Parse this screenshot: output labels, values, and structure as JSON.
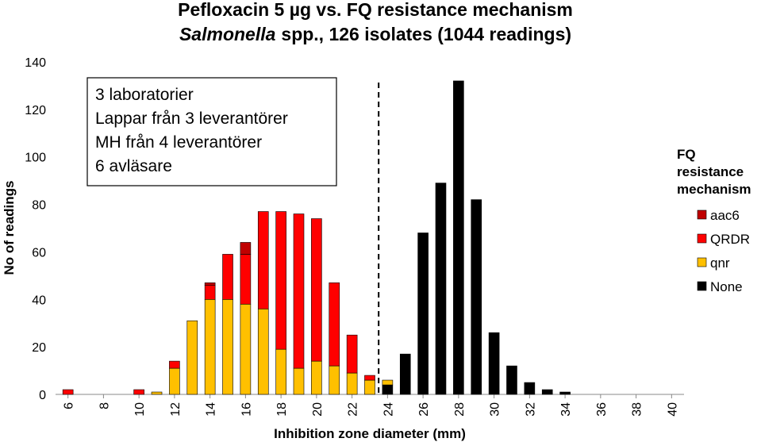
{
  "chart_data": {
    "type": "stacked_bar",
    "title": "Pefloxacin 5 µg vs. FQ resistance mechanism",
    "subtitle_parts": [
      "Salmonella",
      "spp., 126 isolates (1044 readings)"
    ],
    "xlabel": "Inhibition zone diameter (mm)",
    "ylabel": "No of readings",
    "annotation_lines": [
      "3 laboratorier",
      "Lappar från 3 leverantörer",
      "MH från 4 leverantörer",
      "6 avläsare"
    ],
    "legend_title": "FQ resistance mechanism",
    "legend_position": "right",
    "x": [
      6,
      7,
      8,
      9,
      10,
      11,
      12,
      13,
      14,
      15,
      16,
      17,
      18,
      19,
      20,
      21,
      22,
      23,
      24,
      25,
      26,
      27,
      28,
      29,
      30,
      31,
      32,
      33,
      34,
      35,
      36,
      37,
      38,
      39,
      40
    ],
    "xlim": [
      5.3,
      40.7
    ],
    "xticks": [
      6,
      8,
      10,
      12,
      14,
      16,
      18,
      20,
      22,
      24,
      26,
      28,
      30,
      32,
      34,
      36,
      38,
      40
    ],
    "ylim": [
      0,
      140
    ],
    "yticks": [
      0,
      20,
      40,
      60,
      80,
      100,
      120,
      140
    ],
    "vline": 23.5,
    "series": [
      {
        "name": "None",
        "color": "#000000",
        "values": [
          null,
          null,
          null,
          null,
          null,
          null,
          null,
          null,
          null,
          null,
          null,
          null,
          null,
          null,
          null,
          null,
          null,
          null,
          4,
          17,
          68,
          89,
          132,
          82,
          26,
          12,
          5,
          2,
          1,
          null,
          null,
          null,
          null,
          null,
          null
        ]
      },
      {
        "name": "qnr",
        "color": "#ffc000",
        "values": [
          null,
          null,
          null,
          null,
          null,
          1,
          11,
          31,
          40,
          40,
          38,
          36,
          19,
          11,
          14,
          12,
          9,
          6,
          2,
          null,
          null,
          null,
          null,
          null,
          null,
          null,
          null,
          null,
          null,
          null,
          null,
          null,
          null,
          null,
          null
        ]
      },
      {
        "name": "QRDR",
        "color": "#ff0000",
        "values": [
          2,
          null,
          null,
          null,
          2,
          null,
          3,
          null,
          6,
          19,
          21,
          41,
          58,
          65,
          60,
          35,
          16,
          2,
          null,
          null,
          null,
          null,
          null,
          null,
          null,
          null,
          null,
          null,
          null,
          null,
          null,
          null,
          null,
          null,
          null
        ]
      },
      {
        "name": "aac6",
        "color": "#c00000",
        "values": [
          null,
          null,
          null,
          null,
          null,
          null,
          null,
          null,
          1,
          null,
          5,
          null,
          null,
          null,
          null,
          null,
          null,
          null,
          null,
          null,
          null,
          null,
          null,
          null,
          null,
          null,
          null,
          null,
          null,
          null,
          null,
          null,
          null,
          null,
          null
        ]
      }
    ]
  }
}
